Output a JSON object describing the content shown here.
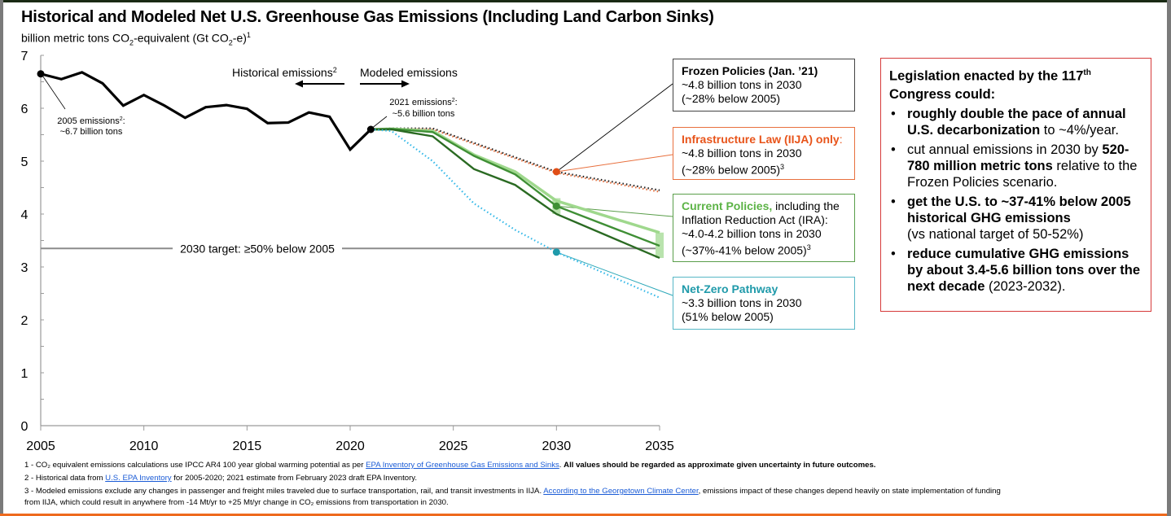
{
  "header": {
    "title": "Historical and Modeled Net U.S. Greenhouse Gas Emissions (Including Land Carbon Sinks)",
    "subtitle_pre": "billion metric tons CO",
    "subtitle_sub": "2",
    "subtitle_mid": "-equivalent (Gt CO",
    "subtitle_sub2": "2",
    "subtitle_post": "-e)",
    "subtitle_sup": "1"
  },
  "chart_data": {
    "type": "line",
    "title": "Historical and Modeled Net U.S. Greenhouse Gas Emissions (Including Land Carbon Sinks)",
    "ylabel": "billion metric tons CO2-equivalent (Gt CO2-e)",
    "xlabel": "",
    "xlim": [
      2005,
      2035
    ],
    "ylim": [
      0,
      7
    ],
    "x_ticks": [
      "2005",
      "2010",
      "2015",
      "2020",
      "2025",
      "2030",
      "2035"
    ],
    "y_ticks": [
      "0",
      "1",
      "2",
      "3",
      "4",
      "5",
      "6",
      "7"
    ],
    "grid": false,
    "series": [
      {
        "name": "Historical emissions",
        "color": "#000000",
        "style": "solid",
        "x": [
          2005,
          2006,
          2007,
          2008,
          2009,
          2010,
          2011,
          2012,
          2013,
          2014,
          2015,
          2016,
          2017,
          2018,
          2019,
          2020,
          2021
        ],
        "values": [
          6.65,
          6.55,
          6.68,
          6.47,
          6.05,
          6.25,
          6.05,
          5.82,
          6.02,
          6.06,
          5.99,
          5.72,
          5.73,
          5.92,
          5.84,
          5.22,
          5.6
        ]
      },
      {
        "name": "Frozen Policies (Jan. '21)",
        "color": "#222222",
        "style": "dotted",
        "x": [
          2021,
          2022,
          2024,
          2030,
          2035
        ],
        "values": [
          5.6,
          5.62,
          5.62,
          4.8,
          4.45
        ]
      },
      {
        "name": "Infrastructure Law (IIJA) only",
        "color": "#e8703e",
        "style": "dotted",
        "x": [
          2021,
          2022,
          2024,
          2030,
          2035
        ],
        "values": [
          5.6,
          5.61,
          5.6,
          4.78,
          4.42
        ]
      },
      {
        "name": "Current Policies (IRA) - high",
        "color": "#9fd88d",
        "style": "solid",
        "x": [
          2021,
          2022,
          2024,
          2026,
          2028,
          2030,
          2035
        ],
        "values": [
          5.6,
          5.61,
          5.57,
          5.12,
          4.8,
          4.25,
          3.65
        ]
      },
      {
        "name": "Current Policies (IRA) - mid",
        "color": "#3f8f35",
        "style": "solid",
        "x": [
          2021,
          2022,
          2024,
          2026,
          2028,
          2030,
          2035
        ],
        "values": [
          5.6,
          5.61,
          5.55,
          5.1,
          4.75,
          4.15,
          3.4
        ]
      },
      {
        "name": "Current Policies (IRA) - low",
        "color": "#2a6a22",
        "style": "solid",
        "x": [
          2021,
          2022,
          2024,
          2026,
          2028,
          2030,
          2035
        ],
        "values": [
          5.6,
          5.6,
          5.47,
          4.85,
          4.55,
          4.0,
          3.17
        ]
      },
      {
        "name": "Net-Zero Pathway",
        "color": "#33b8e8",
        "style": "dotted",
        "x": [
          2021,
          2022,
          2024,
          2026,
          2028,
          2030,
          2035
        ],
        "values": [
          5.6,
          5.57,
          5.0,
          4.2,
          3.7,
          3.28,
          2.42
        ]
      }
    ],
    "reference_lines": [
      {
        "label": "2030 target: ≥50% below 2005",
        "y": 3.35,
        "color": "#8c8c8c"
      }
    ],
    "markers": [
      {
        "name": "2005 point",
        "x": 2005,
        "y": 6.65,
        "color": "#000000"
      },
      {
        "name": "2021 point",
        "x": 2021,
        "y": 5.6,
        "color": "#000000"
      },
      {
        "name": "Frozen/IIJA 2030",
        "x": 2030,
        "y": 4.8,
        "color": "#e04e16"
      },
      {
        "name": "Current Policies 2030",
        "x": 2030,
        "y": 4.15,
        "color": "#3f8f35"
      },
      {
        "name": "Net-Zero 2030",
        "x": 2030,
        "y": 3.28,
        "color": "#1f9aaa"
      }
    ],
    "ranges": [
      {
        "name": "IRA 2030 range",
        "x": 2030,
        "y_low": 4.0,
        "y_high": 4.3,
        "color": "#b9e3ad"
      },
      {
        "name": "IRA 2035 range",
        "x": 2035,
        "y_low": 3.17,
        "y_high": 3.65,
        "color": "#b9e3ad"
      }
    ],
    "annotations": [
      {
        "text_1": "2005 emissions",
        "sup": "2",
        "text_2": ":",
        "text_3": "~6.7 billion tons"
      },
      {
        "text_1": "2021 emissions",
        "sup": "2",
        "text_2": ":",
        "text_3": "~5.6 billion tons"
      },
      {
        "historical_label": "Historical emissions",
        "historical_sup": "2",
        "modeled_label": "Modeled emissions"
      }
    ]
  },
  "callouts": {
    "frozen": {
      "title": "Frozen Policies (Jan. ’21)",
      "line1": "~4.8 billion tons in 2030",
      "line2": "(~28% below 2005)"
    },
    "iija": {
      "title": "Infrastructure Law (IIJA) only",
      "title_suffix": ":",
      "line1": "~4.8 billion tons in 2030",
      "line2": "(~28% below 2005)",
      "sup": "3"
    },
    "current": {
      "title": "Current Policies,",
      "title_rest": " including the",
      "line1": "Inflation Reduction Act (IRA):",
      "line2": "~4.0-4.2 billion tons in 2030",
      "line3": "(~37%-41% below 2005)",
      "sup": "3"
    },
    "netzero": {
      "title": "Net-Zero Pathway",
      "line1": "~3.3 billion tons in 2030",
      "line2": "(51% below 2005)"
    }
  },
  "legislation": {
    "head_1": "Legislation enacted by the 117",
    "head_sup": "th",
    "head_2": "Congress could:",
    "bullet": "•",
    "items": [
      {
        "bold": "roughly double the pace of annual U.S. decarbonization",
        "rest": " to ~4%/year."
      },
      {
        "pre": "cut annual emissions in 2030 by ",
        "bold": "520-780 million metric tons",
        "rest": " relative to the Frozen Policies scenario."
      },
      {
        "bold": "get the U.S. to ~37-41% below 2005 historical GHG emissions",
        "rest": "(vs national target of 50-52%)"
      },
      {
        "bold": "reduce cumulative GHG emissions by about 3.4-5.6 billion tons over the next decade",
        "rest": " (2023-2032)."
      }
    ]
  },
  "footnotes": {
    "fn1_pre": "1 - CO₂ equivalent emissions calculations use IPCC AR4 100 year global warming potential as per ",
    "fn1_link": "EPA Inventory of Greenhouse Gas Emissions and Sinks",
    "fn1_mid": ".  ",
    "fn1_bold": "All values should be regarded as approximate given uncertainty in future outcomes.",
    "fn2_pre": "2 - Historical data from ",
    "fn2_link": "U.S. EPA Inventory",
    "fn2_post": " for 2005-2020; 2021 estimate from February 2023 draft EPA Inventory.",
    "fn3_pre": "3 - Modeled emissions exclude any changes in passenger and freight miles traveled due to surface transportation, rail, and transit investments in IIJA. ",
    "fn3_link": "According to the Georgetown Climate Center",
    "fn3_post": ", emissions impact of these changes depend heavily on state implementation of funding",
    "fn3_line2": "from IIJA, which could result in anywhere from -14 Mt/yr to +25 Mt/yr change in CO₂ emissions from transportation in 2030."
  }
}
